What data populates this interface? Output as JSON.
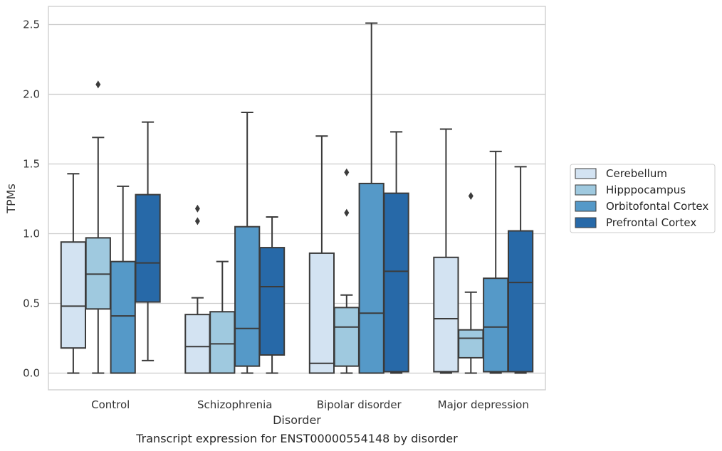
{
  "chart_data": {
    "type": "boxplot",
    "caption": "Transcript expression for ENST00000554148 by disorder",
    "xlabel": "Disorder",
    "ylabel": "TPMs",
    "ylim": [
      -0.12,
      2.63
    ],
    "yticks": [
      "0.0",
      "0.5",
      "1.0",
      "1.5",
      "2.0",
      "2.5"
    ],
    "grid": "horizontal",
    "legend_position": "right",
    "categories": [
      "Control",
      "Schizophrenia",
      "Bipolar disorder",
      "Major depression"
    ],
    "series": [
      {
        "name": "Cerebellum",
        "color": "#d3e3f2",
        "boxes": [
          {
            "whislo": 0.0,
            "q1": 0.18,
            "med": 0.48,
            "q3": 0.94,
            "whishi": 1.43,
            "fliers": []
          },
          {
            "whislo": 0.0,
            "q1": 0.0,
            "med": 0.19,
            "q3": 0.42,
            "whishi": 0.54,
            "fliers": [
              1.09,
              1.18
            ]
          },
          {
            "whislo": 0.0,
            "q1": 0.0,
            "med": 0.07,
            "q3": 0.86,
            "whishi": 1.7,
            "fliers": []
          },
          {
            "whislo": 0.0,
            "q1": 0.01,
            "med": 0.39,
            "q3": 0.83,
            "whishi": 1.75,
            "fliers": []
          }
        ]
      },
      {
        "name": "Hipppocampus",
        "color": "#9fc9df",
        "boxes": [
          {
            "whislo": 0.0,
            "q1": 0.46,
            "med": 0.71,
            "q3": 0.97,
            "whishi": 1.69,
            "fliers": [
              2.07
            ]
          },
          {
            "whislo": 0.0,
            "q1": 0.0,
            "med": 0.21,
            "q3": 0.44,
            "whishi": 0.8,
            "fliers": []
          },
          {
            "whislo": 0.0,
            "q1": 0.05,
            "med": 0.33,
            "q3": 0.47,
            "whishi": 0.56,
            "fliers": [
              1.15,
              1.44
            ]
          },
          {
            "whislo": 0.0,
            "q1": 0.11,
            "med": 0.25,
            "q3": 0.31,
            "whishi": 0.58,
            "fliers": [
              1.27
            ]
          }
        ]
      },
      {
        "name": "Orbitofontal Cortex",
        "color": "#5599c8",
        "boxes": [
          {
            "whislo": 0.0,
            "q1": 0.0,
            "med": 0.41,
            "q3": 0.8,
            "whishi": 1.34,
            "fliers": []
          },
          {
            "whislo": 0.0,
            "q1": 0.05,
            "med": 0.32,
            "q3": 1.05,
            "whishi": 1.87,
            "fliers": []
          },
          {
            "whislo": 0.0,
            "q1": 0.0,
            "med": 0.43,
            "q3": 1.36,
            "whishi": 2.51,
            "fliers": []
          },
          {
            "whislo": 0.0,
            "q1": 0.01,
            "med": 0.33,
            "q3": 0.68,
            "whishi": 1.59,
            "fliers": []
          }
        ]
      },
      {
        "name": "Prefrontal Cortex",
        "color": "#2769a8",
        "boxes": [
          {
            "whislo": 0.09,
            "q1": 0.51,
            "med": 0.79,
            "q3": 1.28,
            "whishi": 1.8,
            "fliers": []
          },
          {
            "whislo": 0.0,
            "q1": 0.13,
            "med": 0.62,
            "q3": 0.9,
            "whishi": 1.12,
            "fliers": []
          },
          {
            "whislo": 0.0,
            "q1": 0.01,
            "med": 0.73,
            "q3": 1.29,
            "whishi": 1.73,
            "fliers": []
          },
          {
            "whislo": 0.0,
            "q1": 0.01,
            "med": 0.65,
            "q3": 1.02,
            "whishi": 1.48,
            "fliers": []
          }
        ]
      }
    ]
  }
}
